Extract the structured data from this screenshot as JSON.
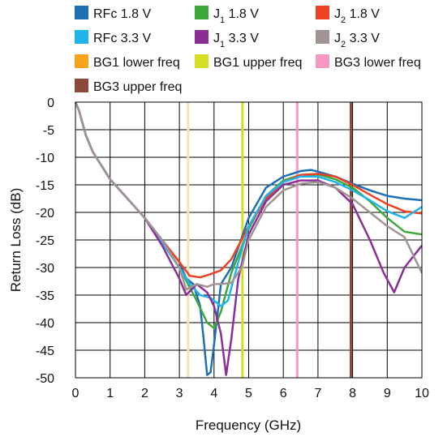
{
  "chart_data": {
    "type": "line",
    "xlabel": "Frequency (GHz)",
    "ylabel": "Return Loss (dB)",
    "xlim": [
      0,
      10
    ],
    "ylim": [
      -50,
      0
    ],
    "xticks": [
      "0",
      "1",
      "2",
      "3",
      "4",
      "5",
      "6",
      "7",
      "8",
      "9",
      "10"
    ],
    "yticks": [
      "0",
      "-5",
      "-10",
      "-15",
      "-20",
      "-25",
      "-30",
      "-35",
      "-40",
      "-45",
      "-50"
    ],
    "grid": true,
    "legend_position": "top",
    "legend": [
      {
        "label": "RFc 1.8 V",
        "color": "#1f6fb3"
      },
      {
        "label": "J",
        "sub": "1",
        "tail": " 1.8 V",
        "color": "#3fa83a"
      },
      {
        "label": "J",
        "sub": "2",
        "tail": " 1.8 V",
        "color": "#ee4023"
      },
      {
        "label": "RFc 3.3 V",
        "color": "#1fb5ea"
      },
      {
        "label": "J",
        "sub": "1",
        "tail": " 3.3 V",
        "color": "#8b2f97"
      },
      {
        "label": "J",
        "sub": "2",
        "tail": " 3.3 V",
        "color": "#a19593"
      },
      {
        "label": "BG1 lower freq",
        "color": "#f7a21b"
      },
      {
        "label": "BG1 upper freq",
        "color": "#d6de23"
      },
      {
        "label": "BG3 lower freq",
        "color": "#f49ac2"
      },
      {
        "label": "BG3 upper freq",
        "color": "#8b4a3a"
      }
    ],
    "vlines": [
      {
        "ref": "BG1 lower freq",
        "x": 3.25,
        "color": "#f3e3b8"
      },
      {
        "ref": "BG1 upper freq",
        "x": 4.82,
        "color": "#d6de23"
      },
      {
        "ref": "BG3 lower freq",
        "x": 6.4,
        "color": "#f49ac2"
      },
      {
        "ref": "BG3 upper freq",
        "x": 7.95,
        "color": "#8b4a3a"
      }
    ],
    "series": [
      {
        "name": "RFc 1.8 V",
        "color": "#1f6fb3",
        "x": [
          0,
          0.1,
          0.3,
          0.5,
          1,
          1.5,
          2,
          2.5,
          3,
          3.2,
          3.4,
          3.6,
          3.7,
          3.8,
          3.9,
          4,
          4.2,
          4.5,
          5,
          5.5,
          6,
          6.5,
          6.8,
          7,
          7.5,
          8,
          8.5,
          9,
          9.5,
          10
        ],
        "y": [
          0,
          -1.5,
          -6,
          -9,
          -14,
          -17.5,
          -21,
          -25,
          -29,
          -32,
          -33,
          -37,
          -43,
          -49.5,
          -49,
          -44,
          -33,
          -30,
          -21,
          -15.5,
          -13.5,
          -12.5,
          -12.3,
          -12.6,
          -13.5,
          -14.8,
          -16,
          -17,
          -17.5,
          -17.8
        ]
      },
      {
        "name": "J1 1.8 V",
        "color": "#3fa83a",
        "x": [
          0,
          0.1,
          0.3,
          0.5,
          1,
          1.5,
          2,
          2.5,
          3,
          3.5,
          3.8,
          4,
          4.2,
          4.5,
          5,
          5.5,
          6,
          6.5,
          7,
          7.5,
          8,
          8.5,
          9,
          9.5,
          10
        ],
        "y": [
          0,
          -1.5,
          -6,
          -9,
          -14,
          -17.5,
          -21,
          -25.5,
          -30,
          -36,
          -40,
          -41,
          -38,
          -31,
          -23,
          -17,
          -14.2,
          -13.2,
          -13.1,
          -14,
          -15.5,
          -18,
          -21,
          -23.5,
          -24
        ]
      },
      {
        "name": "J2 1.8 V",
        "color": "#ee4023",
        "x": [
          0,
          0.1,
          0.3,
          0.5,
          1,
          1.5,
          2,
          2.5,
          3,
          3.3,
          3.6,
          3.9,
          4.2,
          4.5,
          5,
          5.5,
          6,
          6.5,
          7,
          7.5,
          8,
          8.5,
          9,
          9.5,
          10
        ],
        "y": [
          0,
          -1.5,
          -6,
          -9,
          -14,
          -17.5,
          -21,
          -25,
          -29,
          -31.5,
          -31.8,
          -31.2,
          -30.5,
          -28.5,
          -22.5,
          -17.5,
          -14.5,
          -13.2,
          -13,
          -13.5,
          -15,
          -16.8,
          -18.5,
          -19.8,
          -20.2
        ]
      },
      {
        "name": "RFc 3.3 V",
        "color": "#1fb5ea",
        "x": [
          0,
          0.1,
          0.3,
          0.5,
          1,
          1.5,
          2,
          2.5,
          3,
          3.3,
          3.6,
          3.9,
          4.2,
          4.4,
          4.7,
          5,
          5.5,
          6,
          6.5,
          7,
          7.5,
          8,
          8.5,
          9,
          9.5,
          10
        ],
        "y": [
          0,
          -1.5,
          -6,
          -9,
          -14,
          -17.5,
          -21,
          -25.5,
          -30,
          -33,
          -35,
          -35.5,
          -37,
          -36,
          -29,
          -22.5,
          -17,
          -14.5,
          -13.5,
          -13.5,
          -14.5,
          -16,
          -17.8,
          -19.8,
          -21,
          -19
        ]
      },
      {
        "name": "J1 3.3 V",
        "color": "#8b2f97",
        "x": [
          0,
          0.1,
          0.3,
          0.5,
          1,
          1.5,
          2,
          2.5,
          3,
          3.2,
          3.5,
          3.8,
          4,
          4.2,
          4.35,
          4.5,
          4.7,
          5,
          5.5,
          6,
          6.5,
          7,
          7.5,
          8,
          8.5,
          8.9,
          9.2,
          9.5,
          10
        ],
        "y": [
          0,
          -1.5,
          -6,
          -9,
          -14,
          -17.5,
          -21,
          -26,
          -32,
          -35,
          -33,
          -34.5,
          -37,
          -42,
          -49.5,
          -43,
          -32,
          -24,
          -18,
          -15,
          -14.2,
          -14.2,
          -15.5,
          -18.5,
          -25,
          -31,
          -34.5,
          -30,
          -26
        ]
      },
      {
        "name": "J2 3.3 V",
        "color": "#a19593",
        "x": [
          0,
          0.1,
          0.3,
          0.5,
          1,
          1.5,
          2,
          2.5,
          3,
          3.2,
          3.5,
          3.8,
          4,
          4.2,
          4.5,
          4.8,
          5,
          5.5,
          6,
          6.5,
          7,
          7.5,
          8,
          8.5,
          9,
          9.5,
          10
        ],
        "y": [
          0,
          -1.5,
          -6,
          -9,
          -14,
          -17.5,
          -21,
          -25,
          -30,
          -34,
          -33,
          -33.5,
          -33,
          -33,
          -32.8,
          -30,
          -25,
          -19,
          -16,
          -14.8,
          -14.5,
          -15.5,
          -17.5,
          -20,
          -22.5,
          -24.5,
          -31
        ]
      }
    ]
  }
}
